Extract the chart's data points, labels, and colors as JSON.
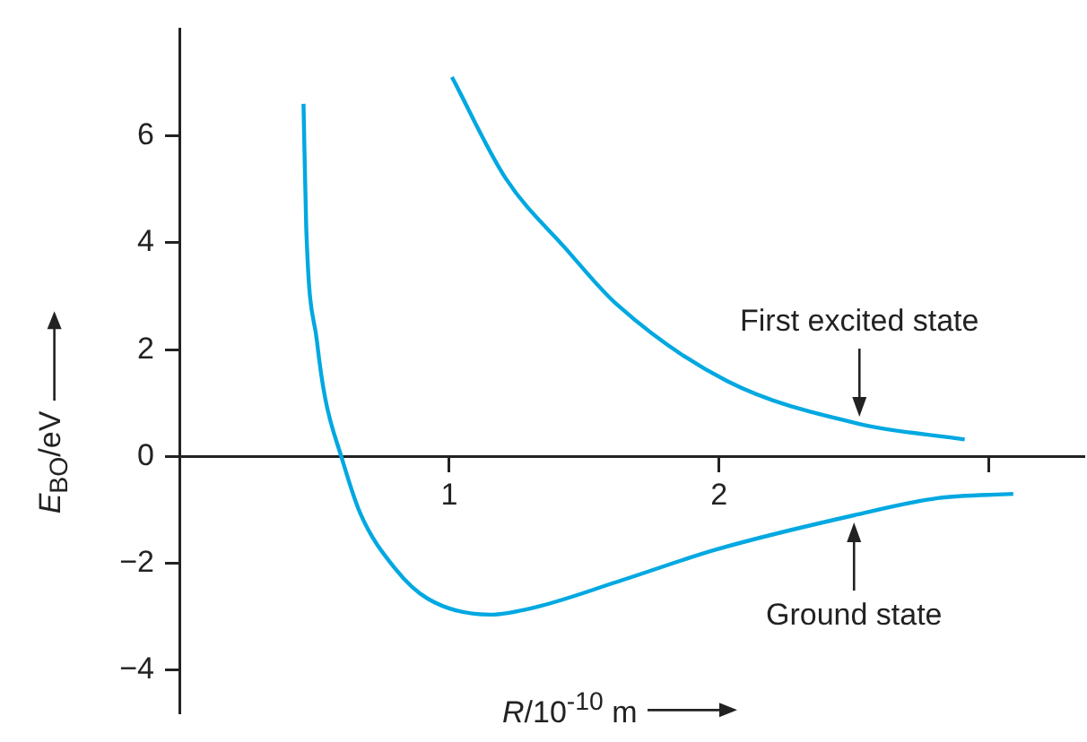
{
  "chart_data": {
    "type": "line",
    "xlabel": "R/10$^{-10}$ m",
    "ylabel": "E$_{BO}$/eV",
    "xlim": [
      0,
      3.35
    ],
    "xticks": [
      1,
      2,
      {
        "value": 3,
        "label": null
      }
    ],
    "ylim": [
      -4.8,
      8.0
    ],
    "yticks": [
      -4,
      -2,
      0,
      2,
      4,
      6
    ],
    "grid": false,
    "legend": false,
    "series": [
      {
        "color": "#00a8e1",
        "x": [
          0.46,
          0.47,
          0.51,
          0.54,
          0.6,
          0.67,
          0.8,
          0.92,
          1.15,
          1.32,
          1.62,
          1.99,
          2.5,
          2.81,
          3.09
        ],
        "values": [
          6.6,
          4.3,
          2.15,
          1.1,
          0,
          -1.06,
          -2.1,
          -2.66,
          -2.96,
          -2.82,
          -2.35,
          -1.74,
          -1.1,
          -0.78,
          -0.7
        ]
      },
      {
        "color": "#00a8e1",
        "x": [
          1.01,
          1.21,
          1.43,
          1.62,
          2.03,
          2.52,
          2.91
        ],
        "values": [
          7.1,
          5.2,
          3.9,
          2.85,
          1.41,
          0.61,
          0.32
        ]
      }
    ],
    "annotations": [
      {
        "text": "First excited state",
        "x": 2.52,
        "y": 0.61
      },
      {
        "text": "Ground state",
        "x": 2.5,
        "y": -1.1
      }
    ]
  }
}
